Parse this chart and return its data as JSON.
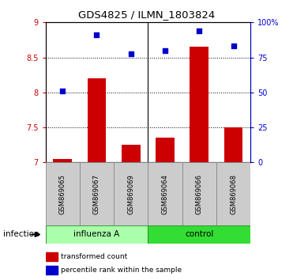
{
  "title": "GDS4825 / ILMN_1803824",
  "samples": [
    "GSM869065",
    "GSM869067",
    "GSM869069",
    "GSM869064",
    "GSM869066",
    "GSM869068"
  ],
  "group_labels": [
    "influenza A",
    "control"
  ],
  "group_colors_light": [
    "#AAFFAA",
    "#44DD44"
  ],
  "bar_values": [
    7.05,
    8.2,
    7.25,
    7.35,
    8.65,
    7.5
  ],
  "scatter_values": [
    8.02,
    8.82,
    8.55,
    8.6,
    8.88,
    8.67
  ],
  "bar_color": "#CC0000",
  "scatter_color": "#0000CC",
  "ylim_left": [
    7.0,
    9.0
  ],
  "ylim_right": [
    0,
    100
  ],
  "yticks_left": [
    7.0,
    7.5,
    8.0,
    8.5,
    9.0
  ],
  "ytick_labels_left": [
    "7",
    "7.5",
    "8",
    "8.5",
    "9"
  ],
  "yticks_right": [
    0,
    25,
    50,
    75,
    100
  ],
  "ytick_labels_right": [
    "0",
    "25",
    "50",
    "75",
    "100%"
  ],
  "hlines": [
    7.5,
    8.0,
    8.5
  ],
  "bar_bottom": 7.0,
  "bar_color_left_axis": "#CC0000",
  "right_axis_color": "#0000CC",
  "infection_label": "infection",
  "legend_bar_label": "transformed count",
  "legend_scatter_label": "percentile rank within the sample",
  "figsize": [
    3.71,
    3.54
  ],
  "dpi": 100
}
